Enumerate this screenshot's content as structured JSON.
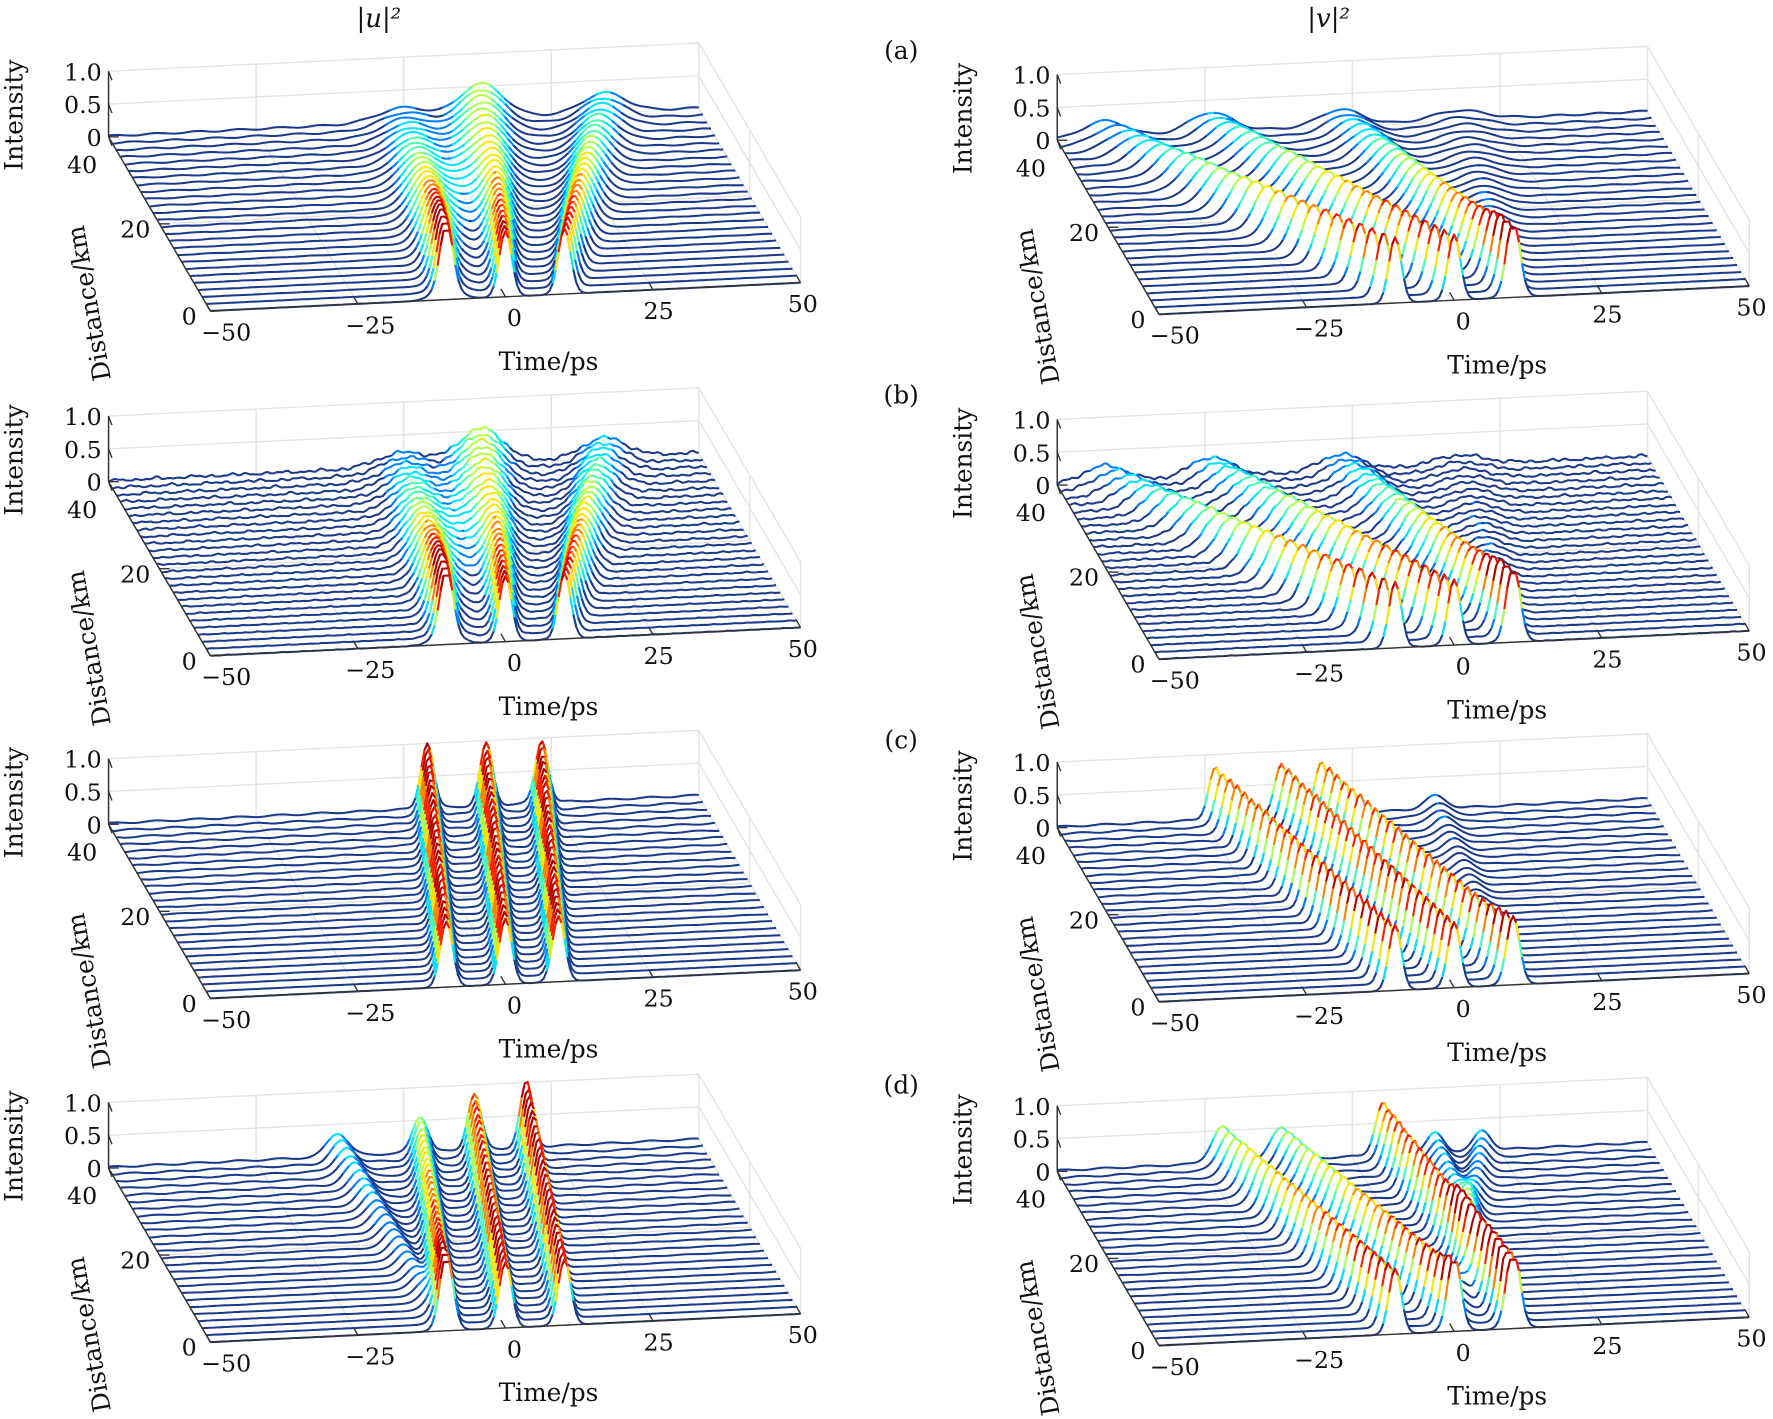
{
  "figure": {
    "column_titles": [
      "|u|²",
      "|v|²"
    ],
    "row_labels": [
      "(a)",
      "(b)",
      "(c)",
      "(d)"
    ]
  },
  "colors": {
    "trace_low": "#1b3a8c",
    "grid": "#e3e3e3",
    "axis": "#333333",
    "colormap": "jet"
  },
  "chart_data": [
    {
      "type": "line",
      "view": "3d-waterfall",
      "row": 0,
      "column": 0,
      "xlabel": "Time/ps",
      "ylabel": "Distance/km",
      "zlabel": "Intensity",
      "xlim": [
        -50,
        50
      ],
      "ylim": [
        0,
        40
      ],
      "zlim": [
        0,
        1
      ],
      "xticks": [
        "−50",
        "−25",
        "0",
        "25",
        "50"
      ],
      "yticks": [
        "0",
        "20",
        "40"
      ],
      "zticks": [
        "0",
        "0.5",
        "1.0"
      ],
      "noisy": false,
      "pulses": [
        {
          "t0": -10,
          "v": 0.25,
          "peak": [
            1,
            0.22
          ],
          "width": [
            1.5,
            6
          ]
        },
        {
          "t0": 0,
          "v": 0.35,
          "peak": [
            1,
            0.3
          ],
          "width": [
            1.5,
            5
          ]
        },
        {
          "t0": 10,
          "v": 0.6,
          "peak": [
            1,
            0.3
          ],
          "width": [
            1.5,
            5
          ]
        },
        {
          "t0": -10,
          "v": 0.55,
          "peak": [
            0.2,
            0.25
          ],
          "width": [
            3,
            5
          ]
        }
      ]
    },
    {
      "type": "line",
      "view": "3d-waterfall",
      "row": 0,
      "column": 1,
      "xlabel": "Time/ps",
      "ylabel": "Distance/km",
      "zlabel": "Intensity",
      "xlim": [
        -50,
        50
      ],
      "ylim": [
        0,
        40
      ],
      "zlim": [
        0,
        1
      ],
      "xticks": [
        "−50",
        "−25",
        "0",
        "25",
        "50"
      ],
      "yticks": [
        "0",
        "20",
        "40"
      ],
      "zticks": [
        "0",
        "0.5",
        "1.0"
      ],
      "noisy": false,
      "pulses": [
        {
          "t0": -10,
          "v": -0.8,
          "peak": [
            1,
            0.25
          ],
          "width": [
            1.5,
            5
          ]
        },
        {
          "t0": 0,
          "v": -0.6,
          "peak": [
            1,
            0.3
          ],
          "width": [
            1.5,
            5
          ]
        },
        {
          "t0": 10,
          "v": -0.3,
          "peak": [
            1,
            0.25
          ],
          "width": [
            1.5,
            5
          ]
        },
        {
          "t0": 10,
          "v": 0.2,
          "peak": [
            0.25,
            0.15
          ],
          "width": [
            2,
            6
          ]
        }
      ]
    },
    {
      "type": "line",
      "view": "3d-waterfall",
      "row": 1,
      "column": 0,
      "xlabel": "Time/ps",
      "ylabel": "Distance/km",
      "zlabel": "Intensity",
      "xlim": [
        -50,
        50
      ],
      "ylim": [
        0,
        40
      ],
      "zlim": [
        0,
        1
      ],
      "xticks": [
        "−50",
        "−25",
        "0",
        "25",
        "50"
      ],
      "yticks": [
        "0",
        "20",
        "40"
      ],
      "zticks": [
        "0",
        "0.5",
        "1.0"
      ],
      "noisy": true,
      "pulses": [
        {
          "t0": -10,
          "v": 0.25,
          "peak": [
            1,
            0.22
          ],
          "width": [
            1.5,
            6
          ]
        },
        {
          "t0": 0,
          "v": 0.35,
          "peak": [
            1,
            0.3
          ],
          "width": [
            1.5,
            5
          ]
        },
        {
          "t0": 10,
          "v": 0.6,
          "peak": [
            1,
            0.3
          ],
          "width": [
            1.5,
            5
          ]
        },
        {
          "t0": -10,
          "v": 0.55,
          "peak": [
            0.2,
            0.25
          ],
          "width": [
            3,
            5
          ]
        }
      ]
    },
    {
      "type": "line",
      "view": "3d-waterfall",
      "row": 1,
      "column": 1,
      "xlabel": "Time/ps",
      "ylabel": "Distance/km",
      "zlabel": "Intensity",
      "xlim": [
        -50,
        50
      ],
      "ylim": [
        0,
        40
      ],
      "zlim": [
        0,
        1
      ],
      "xticks": [
        "−50",
        "−25",
        "0",
        "25",
        "50"
      ],
      "yticks": [
        "0",
        "20",
        "40"
      ],
      "zticks": [
        "0",
        "0.5",
        "1.0"
      ],
      "noisy": true,
      "pulses": [
        {
          "t0": -10,
          "v": -0.8,
          "peak": [
            1,
            0.25
          ],
          "width": [
            1.5,
            5
          ]
        },
        {
          "t0": 0,
          "v": -0.6,
          "peak": [
            1,
            0.3
          ],
          "width": [
            1.5,
            5
          ]
        },
        {
          "t0": 10,
          "v": -0.3,
          "peak": [
            1,
            0.25
          ],
          "width": [
            1.5,
            5
          ]
        },
        {
          "t0": 10,
          "v": 0.2,
          "peak": [
            0.25,
            0.15
          ],
          "width": [
            2,
            6
          ]
        }
      ]
    },
    {
      "type": "line",
      "view": "3d-waterfall",
      "row": 2,
      "column": 0,
      "xlabel": "Time/ps",
      "ylabel": "Distance/km",
      "zlabel": "Intensity",
      "xlim": [
        -50,
        50
      ],
      "ylim": [
        0,
        40
      ],
      "zlim": [
        0,
        1
      ],
      "xticks": [
        "−50",
        "−25",
        "0",
        "25",
        "50"
      ],
      "yticks": [
        "0",
        "20",
        "40"
      ],
      "zticks": [
        "0",
        "0.5",
        "1.0"
      ],
      "noisy": false,
      "pulses": [
        {
          "t0": -10,
          "v": 0.35,
          "peak": [
            1,
            1
          ],
          "width": [
            1.5,
            1.5
          ]
        },
        {
          "t0": 0,
          "v": 0.35,
          "peak": [
            1,
            0.95
          ],
          "width": [
            1.5,
            1.5
          ]
        },
        {
          "t0": 9,
          "v": 0.36,
          "peak": [
            1,
            0.95
          ],
          "width": [
            1.5,
            1.5
          ]
        }
      ]
    },
    {
      "type": "line",
      "view": "3d-waterfall",
      "row": 2,
      "column": 1,
      "xlabel": "Time/ps",
      "ylabel": "Distance/km",
      "zlabel": "Intensity",
      "xlim": [
        -50,
        50
      ],
      "ylim": [
        0,
        40
      ],
      "zlim": [
        0,
        1
      ],
      "xticks": [
        "−50",
        "−25",
        "0",
        "25",
        "50"
      ],
      "yticks": [
        "0",
        "20",
        "40"
      ],
      "zticks": [
        "0",
        "0.5",
        "1.0"
      ],
      "noisy": false,
      "pulses": [
        {
          "t0": -10,
          "v": -0.33,
          "peak": [
            1,
            0.8
          ],
          "width": [
            1.5,
            1.6
          ]
        },
        {
          "t0": 0,
          "v": -0.3,
          "peak": [
            1,
            0.8
          ],
          "width": [
            1.5,
            1.6
          ]
        },
        {
          "t0": 10,
          "v": -0.38,
          "peak": [
            0.9,
            0.8
          ],
          "width": [
            1.5,
            1.6
          ]
        },
        {
          "t0": 10,
          "v": 0.1,
          "peak": [
            0.15,
            0.2
          ],
          "width": [
            2,
            2.5
          ]
        }
      ]
    },
    {
      "type": "line",
      "view": "3d-waterfall",
      "row": 3,
      "column": 0,
      "xlabel": "Time/ps",
      "ylabel": "Distance/km",
      "zlabel": "Intensity",
      "xlim": [
        -50,
        50
      ],
      "ylim": [
        0,
        40
      ],
      "zlim": [
        0,
        1
      ],
      "xticks": [
        "−50",
        "−25",
        "0",
        "25",
        "50"
      ],
      "yticks": [
        "0",
        "20",
        "40"
      ],
      "zticks": [
        "0",
        "0.5",
        "1.0"
      ],
      "noisy": false,
      "pulses": [
        {
          "t0": -10,
          "v": 0.32,
          "peak": [
            1,
            0.55
          ],
          "width": [
            1.5,
            1.8
          ]
        },
        {
          "t0": 0,
          "v": 0.3,
          "peak": [
            1,
            0.85
          ],
          "width": [
            1.5,
            1.6
          ]
        },
        {
          "t0": 10,
          "v": 0.27,
          "peak": [
            1,
            1
          ],
          "width": [
            1.5,
            1.5
          ]
        },
        {
          "t0": -10,
          "v": -0.03,
          "peak": [
            0.2,
            0.35
          ],
          "width": [
            2,
            2.5
          ]
        }
      ]
    },
    {
      "type": "line",
      "view": "3d-waterfall",
      "row": 3,
      "column": 1,
      "xlabel": "Time/ps",
      "ylabel": "Distance/km",
      "zlabel": "Intensity",
      "xlim": [
        -50,
        50
      ],
      "ylim": [
        0,
        40
      ],
      "zlim": [
        0,
        1
      ],
      "xticks": [
        "−50",
        "−25",
        "0",
        "25",
        "50"
      ],
      "yticks": [
        "0",
        "20",
        "40"
      ],
      "zticks": [
        "0",
        "0.5",
        "1.0"
      ],
      "noisy": false,
      "pulses": [
        {
          "t0": -10,
          "v": -0.3,
          "peak": [
            1,
            0.55
          ],
          "width": [
            1.5,
            2.5
          ]
        },
        {
          "t0": 0,
          "v": -0.3,
          "peak": [
            1,
            0.5
          ],
          "width": [
            1.5,
            2.5
          ]
        },
        {
          "t0": 10,
          "v": -0.12,
          "peak": [
            1,
            0.8
          ],
          "width": [
            1.5,
            1.8
          ]
        },
        {
          "t0": 10,
          "v": 0.1,
          "peak": [
            0.3,
            0.3
          ],
          "width": [
            2,
            2
          ]
        },
        {
          "t0": 0,
          "v": 0.55,
          "peak": [
            0.2,
            0.3
          ],
          "width": [
            2,
            2
          ]
        }
      ]
    }
  ]
}
